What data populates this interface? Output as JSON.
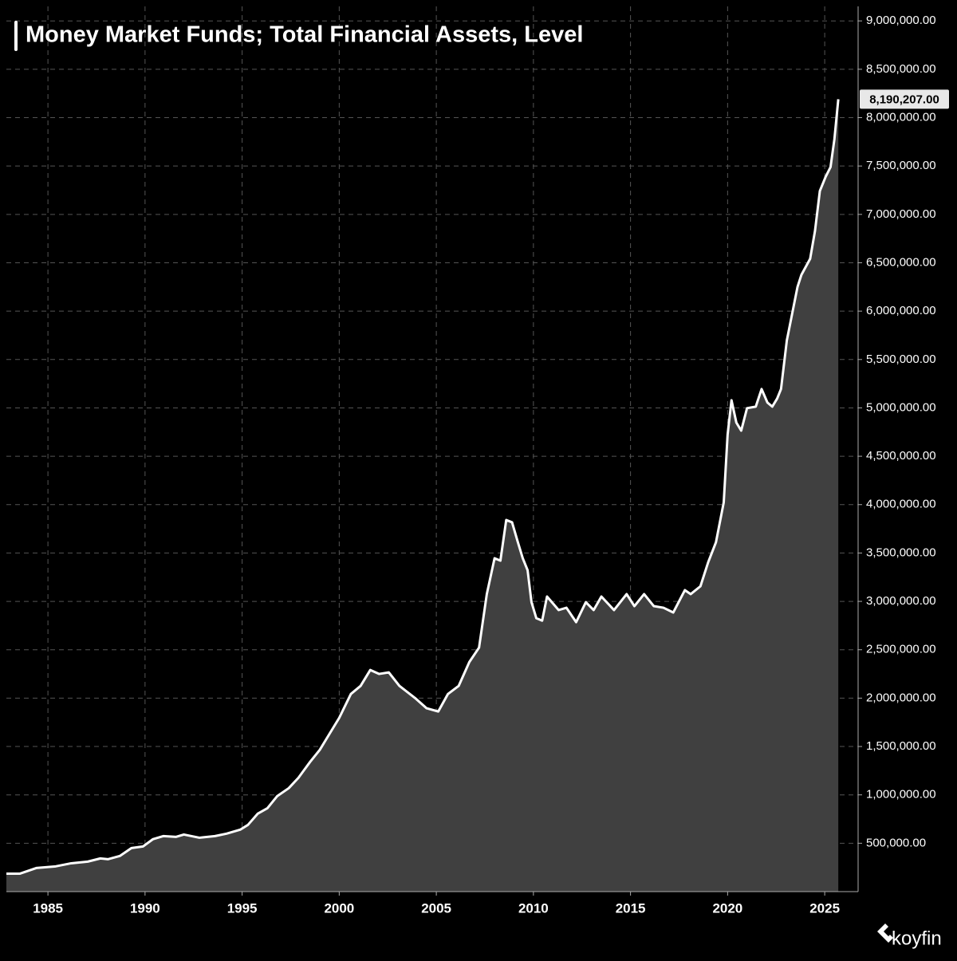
{
  "chart_data": {
    "type": "area",
    "title": "Money Market Funds; Total Financial Assets, Level",
    "watermark": "koyfin",
    "grid": true,
    "x": [
      1982.86,
      1983.56,
      1984.4,
      1985.4,
      1986.2,
      1987.05,
      1987.7,
      1988.1,
      1988.7,
      1989.3,
      1989.9,
      1990.4,
      1990.95,
      1991.6,
      1992.0,
      1992.8,
      1993.6,
      1994.2,
      1994.9,
      1995.3,
      1995.8,
      1996.3,
      1996.8,
      1997.4,
      1997.9,
      1998.5,
      1999.0,
      1999.5,
      2000.0,
      2000.6,
      2001.1,
      2001.6,
      2002.05,
      2002.55,
      2003.1,
      2003.9,
      2004.5,
      2005.1,
      2005.6,
      2006.15,
      2006.7,
      2007.2,
      2007.6,
      2008.0,
      2008.3,
      2008.6,
      2008.9,
      2009.2,
      2009.45,
      2009.7,
      2009.9,
      2010.15,
      2010.45,
      2010.7,
      2011.3,
      2011.7,
      2012.2,
      2012.7,
      2013.1,
      2013.5,
      2014.15,
      2014.8,
      2015.2,
      2015.7,
      2016.2,
      2016.7,
      2017.2,
      2017.8,
      2018.1,
      2018.6,
      2019.0,
      2019.4,
      2019.8,
      2020.0,
      2020.2,
      2020.45,
      2020.7,
      2021.0,
      2021.45,
      2021.75,
      2022.05,
      2022.3,
      2022.55,
      2022.75,
      2023.05,
      2023.6,
      2023.8,
      2024.25,
      2024.5,
      2024.75,
      2025.05,
      2025.3,
      2025.5,
      2025.7
    ],
    "series": [
      {
        "color": "#ffffff",
        "fill": "#404040",
        "values": [
          186000,
          186000,
          244000,
          261000,
          293000,
          310000,
          343000,
          335000,
          368000,
          450000,
          467000,
          541000,
          574000,
          566000,
          590000,
          557000,
          574000,
          599000,
          640000,
          690000,
          805000,
          862000,
          986000,
          1069000,
          1177000,
          1341000,
          1466000,
          1631000,
          1796000,
          2043000,
          2126000,
          2291000,
          2250000,
          2266000,
          2126000,
          2002000,
          1895000,
          1862000,
          2043000,
          2126000,
          2373000,
          2522000,
          3075000,
          3446000,
          3421000,
          3841000,
          3817000,
          3611000,
          3446000,
          3322000,
          2992000,
          2826000,
          2801000,
          3050000,
          2910000,
          2934000,
          2785000,
          2992000,
          2910000,
          3050000,
          2910000,
          3075000,
          2951000,
          3075000,
          2951000,
          2934000,
          2885000,
          3116000,
          3075000,
          3156000,
          3405000,
          3611000,
          4023000,
          4724000,
          5079000,
          4848000,
          4765000,
          4997000,
          5013000,
          5195000,
          5055000,
          5013000,
          5096000,
          5195000,
          5698000,
          6251000,
          6375000,
          6541000,
          6829000,
          7242000,
          7390000,
          7489000,
          7778000,
          8190207
        ],
        "last_value_label": "8,190,207.00"
      }
    ],
    "xlim": [
      1982.86,
      2026.72
    ],
    "ylim": [
      0,
      9150000
    ],
    "xticks": [
      1985,
      1990,
      1995,
      2000,
      2005,
      2010,
      2015,
      2020,
      2025
    ],
    "yticks": [
      {
        "value": 500000,
        "label": "500,000.00"
      },
      {
        "value": 1000000,
        "label": "1,000,000.00"
      },
      {
        "value": 1500000,
        "label": "1,500,000.00"
      },
      {
        "value": 2000000,
        "label": "2,000,000.00"
      },
      {
        "value": 2500000,
        "label": "2,500,000.00"
      },
      {
        "value": 3000000,
        "label": "3,000,000.00"
      },
      {
        "value": 3500000,
        "label": "3,500,000.00"
      },
      {
        "value": 4000000,
        "label": "4,000,000.00"
      },
      {
        "value": 4500000,
        "label": "4,500,000.00"
      },
      {
        "value": 5000000,
        "label": "5,000,000.00"
      },
      {
        "value": 5500000,
        "label": "5,500,000.00"
      },
      {
        "value": 6000000,
        "label": "6,000,000.00"
      },
      {
        "value": 6500000,
        "label": "6,500,000.00"
      },
      {
        "value": 7000000,
        "label": "7,000,000.00"
      },
      {
        "value": 7500000,
        "label": "7,500,000.00"
      },
      {
        "value": 8000000,
        "label": "8,000,000.00"
      },
      {
        "value": 8500000,
        "label": "8,500,000.00"
      },
      {
        "value": 9000000,
        "label": "9,000,000.00"
      }
    ]
  }
}
